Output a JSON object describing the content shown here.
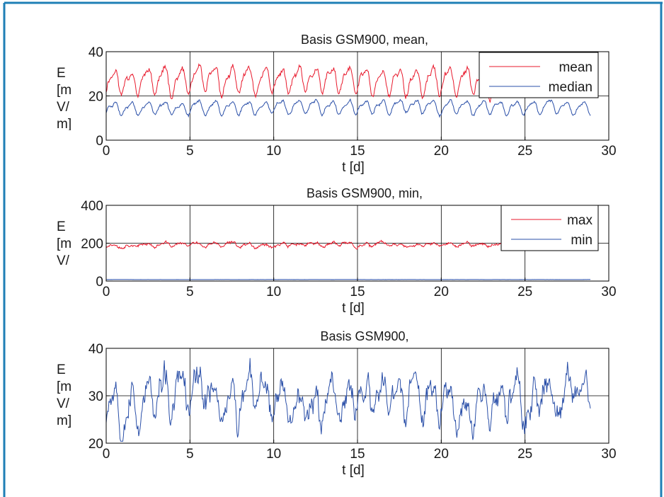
{
  "frame": {
    "border_color": "#1f7fb6"
  },
  "chart_data": [
    {
      "type": "line",
      "title": "Basis GSM900, mean,",
      "xlabel": "t [d]",
      "ylabel": [
        "E",
        "[m",
        "V/",
        "m]"
      ],
      "xlim": [
        0,
        30
      ],
      "ylim": [
        0,
        40
      ],
      "xticks": [
        "0",
        "5",
        "10",
        "15",
        "20",
        "25",
        "30"
      ],
      "yticks": [
        "0",
        "20",
        "40"
      ],
      "grid": true,
      "legend_position": "top-right",
      "legend": [
        "mean",
        "median"
      ],
      "series": [
        {
          "name": "mean",
          "color": "#e8192c",
          "mean": 27,
          "amp": 5,
          "noise": 1.5,
          "x_end": 28.9,
          "seed": 11
        },
        {
          "name": "median",
          "color": "#2a4fa8",
          "mean": 15,
          "amp": 2.6,
          "noise": 0.7,
          "x_end": 28.9,
          "seed": 23
        }
      ]
    },
    {
      "type": "line",
      "title": "Basis GSM900, min,",
      "xlabel": "t [d]",
      "ylabel": [
        "E",
        "[m",
        "V/",
        "m]"
      ],
      "xlim": [
        0,
        30
      ],
      "ylim": [
        0,
        400
      ],
      "xticks": [
        "0",
        "5",
        "10",
        "15",
        "20",
        "25",
        "30"
      ],
      "yticks": [
        "0",
        "200",
        "400"
      ],
      "grid": true,
      "legend_position": "top-right",
      "legend": [
        "max",
        "min"
      ],
      "series": [
        {
          "name": "max",
          "color": "#e8192c",
          "mean": 192,
          "amp": 8,
          "noise": 8,
          "x_end": 23.8,
          "seed": 37
        },
        {
          "name": "min",
          "color": "#2a4fa8",
          "mean": 8,
          "amp": 0,
          "noise": 0.4,
          "x_end": 28.9,
          "seed": 41
        }
      ]
    },
    {
      "type": "line",
      "title": "Basis GSM900,",
      "xlabel": "t [d]",
      "ylabel": [
        "E",
        "[m",
        "V/",
        "m]"
      ],
      "xlim": [
        0,
        30
      ],
      "ylim": [
        20,
        40
      ],
      "xticks": [
        "0",
        "5",
        "10",
        "15",
        "20",
        "25",
        "30"
      ],
      "yticks": [
        "20",
        "30",
        "40"
      ],
      "grid": true,
      "legend": [],
      "series": [
        {
          "color": "#2a4fa8",
          "mean": 29.5,
          "amp": 3.5,
          "noise": 3,
          "x_end": 28.9,
          "seed": 53
        }
      ]
    }
  ]
}
